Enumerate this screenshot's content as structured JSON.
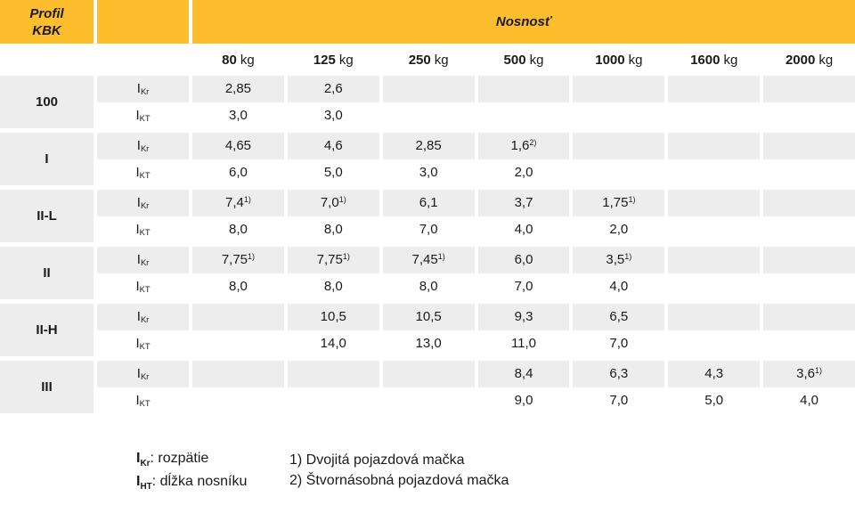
{
  "colors": {
    "accent": "#FCBE2D",
    "row_gray": "#EDEDED",
    "text": "#1A1A1A"
  },
  "table": {
    "header": {
      "profil": "Profil\nKBK",
      "nosnost": "Nosnosť"
    },
    "capacities": [
      "80",
      "125",
      "250",
      "500",
      "1000",
      "1600",
      "2000"
    ],
    "kg_label": "kg",
    "row_label_base": "I",
    "profiles": [
      {
        "name": "100",
        "rows": [
          {
            "label_sub": "Kr",
            "cells": [
              {
                "v": "2,85"
              },
              {
                "v": "2,6"
              },
              {},
              {},
              {},
              {},
              {}
            ]
          },
          {
            "label_sub": "KT",
            "cells": [
              {
                "v": "3,0"
              },
              {
                "v": "3,0"
              },
              {},
              {},
              {},
              {},
              {}
            ]
          }
        ]
      },
      {
        "name": "I",
        "rows": [
          {
            "label_sub": "Kr",
            "cells": [
              {
                "v": "4,65"
              },
              {
                "v": "4,6"
              },
              {
                "v": "2,85"
              },
              {
                "v": "1,6",
                "sup": "2)"
              },
              {},
              {},
              {}
            ]
          },
          {
            "label_sub": "KT",
            "cells": [
              {
                "v": "6,0"
              },
              {
                "v": "5,0"
              },
              {
                "v": "3,0"
              },
              {
                "v": "2,0"
              },
              {},
              {},
              {}
            ]
          }
        ]
      },
      {
        "name": "II-L",
        "rows": [
          {
            "label_sub": "Kr",
            "cells": [
              {
                "v": "7,4",
                "sup": "1)"
              },
              {
                "v": "7,0",
                "sup": "1)"
              },
              {
                "v": "6,1"
              },
              {
                "v": "3,7"
              },
              {
                "v": "1,75",
                "sup": "1)"
              },
              {},
              {}
            ]
          },
          {
            "label_sub": "KT",
            "cells": [
              {
                "v": "8,0"
              },
              {
                "v": "8,0"
              },
              {
                "v": "7,0"
              },
              {
                "v": "4,0"
              },
              {
                "v": "2,0"
              },
              {},
              {}
            ]
          }
        ]
      },
      {
        "name": "II",
        "rows": [
          {
            "label_sub": "Kr",
            "cells": [
              {
                "v": "7,75",
                "sup": "1)"
              },
              {
                "v": "7,75",
                "sup": "1)"
              },
              {
                "v": "7,45",
                "sup": "1)"
              },
              {
                "v": "6,0"
              },
              {
                "v": "3,5",
                "sup": "1)"
              },
              {},
              {}
            ]
          },
          {
            "label_sub": "KT",
            "cells": [
              {
                "v": "8,0"
              },
              {
                "v": "8,0"
              },
              {
                "v": "8,0"
              },
              {
                "v": "7,0"
              },
              {
                "v": "4,0"
              },
              {},
              {}
            ]
          }
        ]
      },
      {
        "name": "II-H",
        "rows": [
          {
            "label_sub": "Kr",
            "cells": [
              {},
              {
                "v": "10,5"
              },
              {
                "v": "10,5"
              },
              {
                "v": "9,3"
              },
              {
                "v": "6,5"
              },
              {},
              {}
            ]
          },
          {
            "label_sub": "KT",
            "cells": [
              {},
              {
                "v": "14,0"
              },
              {
                "v": "13,0"
              },
              {
                "v": "11,0"
              },
              {
                "v": "7,0"
              },
              {},
              {}
            ]
          }
        ]
      },
      {
        "name": "III",
        "rows": [
          {
            "label_sub": "Kr",
            "cells": [
              {},
              {},
              {},
              {
                "v": "8,4"
              },
              {
                "v": "6,3"
              },
              {
                "v": "4,3"
              },
              {
                "v": "3,6",
                "sup": "1)"
              }
            ]
          },
          {
            "label_sub": "KT",
            "cells": [
              {},
              {},
              {},
              {
                "v": "9,0"
              },
              {
                "v": "7,0"
              },
              {
                "v": "5,0"
              },
              {
                "v": "4,0"
              }
            ]
          }
        ]
      }
    ]
  },
  "legend": {
    "items": [
      {
        "base": "I",
        "sub": "Kr",
        "text": ": rozpätie"
      },
      {
        "base": "I",
        "sub": "HT",
        "text": ": dĺžka nosníku"
      }
    ]
  },
  "footnotes": [
    "1) Dvojitá pojazdová mačka",
    "2) Štvornásobná pojazdová mačka"
  ]
}
